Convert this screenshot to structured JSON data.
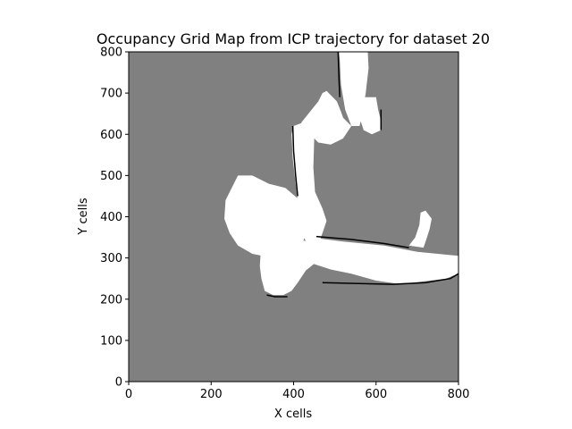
{
  "chart_data": {
    "type": "heatmap",
    "title": "Occupancy Grid Map from ICP trajectory for dataset 20",
    "xlabel": "X cells",
    "ylabel": "Y cells",
    "xlim": [
      0,
      800
    ],
    "ylim": [
      0,
      800
    ],
    "xticks": [
      "0",
      "200",
      "400",
      "600",
      "800"
    ],
    "yticks": [
      "0",
      "100",
      "200",
      "300",
      "400",
      "500",
      "600",
      "700",
      "800"
    ],
    "colormap": "gray",
    "grid": false,
    "legend": "none",
    "colors": {
      "unknown": "#808080",
      "free": "#ffffff",
      "occupied": "#000000"
    },
    "free_regions": [
      {
        "name": "north corridor",
        "polygon": [
          [
            510,
            800
          ],
          [
            580,
            800
          ],
          [
            582,
            760
          ],
          [
            575,
            700
          ],
          [
            565,
            640
          ],
          [
            560,
            620
          ],
          [
            540,
            620
          ],
          [
            525,
            660
          ],
          [
            515,
            720
          ],
          [
            512,
            780
          ]
        ]
      },
      {
        "name": "north-east room",
        "polygon": [
          [
            555,
            690
          ],
          [
            600,
            690
          ],
          [
            605,
            660
          ],
          [
            610,
            640
          ],
          [
            612,
            610
          ],
          [
            590,
            600
          ],
          [
            570,
            610
          ],
          [
            560,
            640
          ]
        ]
      },
      {
        "name": "upper west block",
        "polygon": [
          [
            420,
            630
          ],
          [
            460,
            680
          ],
          [
            470,
            700
          ],
          [
            480,
            705
          ],
          [
            505,
            680
          ],
          [
            515,
            655
          ],
          [
            520,
            640
          ],
          [
            540,
            620
          ],
          [
            520,
            590
          ],
          [
            490,
            575
          ],
          [
            460,
            580
          ],
          [
            440,
            600
          ],
          [
            415,
            620
          ]
        ]
      },
      {
        "name": "central corridor",
        "polygon": [
          [
            400,
            620
          ],
          [
            440,
            635
          ],
          [
            450,
            590
          ],
          [
            448,
            520
          ],
          [
            452,
            460
          ],
          [
            470,
            420
          ],
          [
            480,
            390
          ],
          [
            470,
            360
          ],
          [
            455,
            320
          ],
          [
            435,
            330
          ],
          [
            420,
            360
          ],
          [
            412,
            420
          ],
          [
            405,
            480
          ],
          [
            398,
            540
          ],
          [
            395,
            600
          ]
        ]
      },
      {
        "name": "west cluttered room",
        "polygon": [
          [
            235,
            440
          ],
          [
            250,
            470
          ],
          [
            265,
            500
          ],
          [
            300,
            500
          ],
          [
            340,
            480
          ],
          [
            380,
            470
          ],
          [
            415,
            440
          ],
          [
            420,
            400
          ],
          [
            430,
            360
          ],
          [
            420,
            330
          ],
          [
            390,
            320
          ],
          [
            350,
            300
          ],
          [
            300,
            310
          ],
          [
            265,
            330
          ],
          [
            245,
            360
          ],
          [
            232,
            395
          ]
        ]
      },
      {
        "name": "south lobby",
        "polygon": [
          [
            330,
            330
          ],
          [
            360,
            340
          ],
          [
            400,
            345
          ],
          [
            440,
            340
          ],
          [
            460,
            320
          ],
          [
            455,
            290
          ],
          [
            430,
            270
          ],
          [
            410,
            240
          ],
          [
            395,
            220
          ],
          [
            375,
            210
          ],
          [
            350,
            210
          ],
          [
            330,
            220
          ],
          [
            322,
            250
          ],
          [
            318,
            280
          ],
          [
            320,
            310
          ]
        ]
      },
      {
        "name": "east corridor",
        "polygon": [
          [
            440,
            350
          ],
          [
            520,
            340
          ],
          [
            620,
            330
          ],
          [
            700,
            315
          ],
          [
            800,
            305
          ],
          [
            800,
            262
          ],
          [
            770,
            250
          ],
          [
            690,
            240
          ],
          [
            650,
            238
          ],
          [
            600,
            245
          ],
          [
            540,
            262
          ],
          [
            490,
            272
          ],
          [
            450,
            285
          ],
          [
            435,
            310
          ]
        ]
      },
      {
        "name": "east spur",
        "polygon": [
          [
            680,
            330
          ],
          [
            695,
            350
          ],
          [
            705,
            380
          ],
          [
            708,
            410
          ],
          [
            720,
            415
          ],
          [
            735,
            395
          ],
          [
            730,
            370
          ],
          [
            722,
            345
          ],
          [
            715,
            325
          ]
        ]
      }
    ],
    "occupied_edges": [
      {
        "name": "north corridor west wall",
        "points": [
          [
            508,
            800
          ],
          [
            510,
            740
          ],
          [
            512,
            690
          ]
        ]
      },
      {
        "name": "central corridor west wall",
        "points": [
          [
            398,
            620
          ],
          [
            400,
            560
          ],
          [
            405,
            500
          ],
          [
            410,
            450
          ]
        ]
      },
      {
        "name": "east corridor south wall",
        "points": [
          [
            470,
            240
          ],
          [
            560,
            238
          ],
          [
            640,
            236
          ],
          [
            720,
            240
          ],
          [
            780,
            250
          ],
          [
            800,
            262
          ]
        ]
      },
      {
        "name": "north-east room east wall",
        "points": [
          [
            612,
            660
          ],
          [
            612,
            610
          ]
        ]
      },
      {
        "name": "south lobby south wall",
        "points": [
          [
            335,
            210
          ],
          [
            355,
            206
          ],
          [
            385,
            206
          ]
        ]
      },
      {
        "name": "east corridor north edge",
        "points": [
          [
            455,
            352
          ],
          [
            540,
            345
          ],
          [
            620,
            335
          ],
          [
            680,
            325
          ]
        ]
      }
    ]
  }
}
